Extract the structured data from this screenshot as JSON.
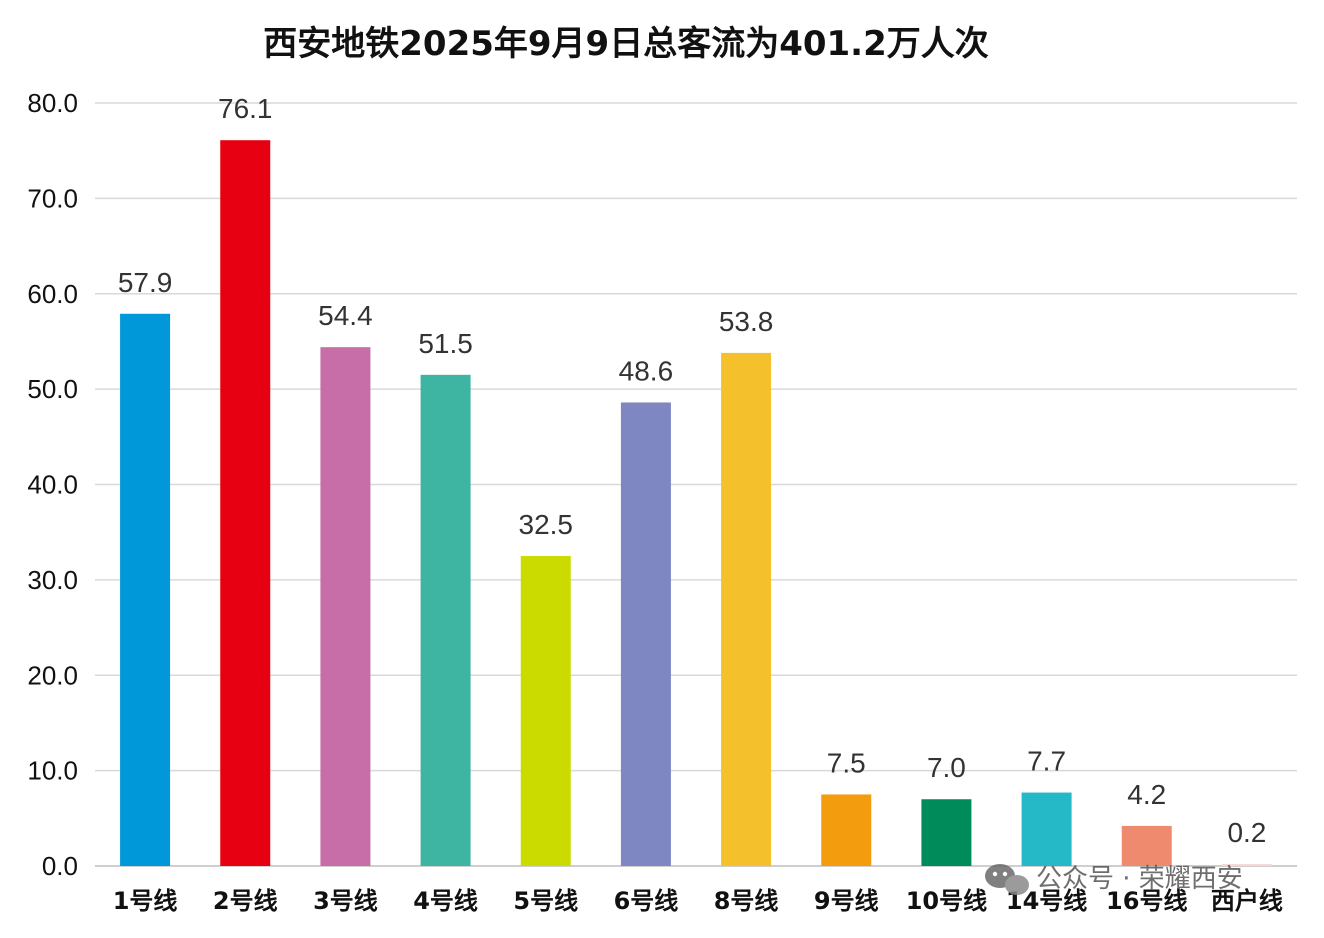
{
  "chart_data": {
    "type": "bar",
    "title": "西安地铁2025年9月9日总客流为401.2万人次",
    "xlabel": "",
    "ylabel": "",
    "ylim": [
      0,
      80
    ],
    "ytick_step": 10,
    "ytick_labels": [
      "0.0",
      "10.0",
      "20.0",
      "30.0",
      "40.0",
      "50.0",
      "60.0",
      "70.0",
      "80.0"
    ],
    "grid": true,
    "legend": "none",
    "categories": [
      "1号线",
      "2号线",
      "3号线",
      "4号线",
      "5号线",
      "6号线",
      "8号线",
      "9号线",
      "10号线",
      "14号线",
      "16号线",
      "西户线"
    ],
    "values": [
      57.9,
      76.1,
      54.4,
      51.5,
      32.5,
      48.6,
      53.8,
      7.5,
      7.0,
      7.7,
      4.2,
      0.2
    ],
    "value_labels": [
      "57.9",
      "76.1",
      "54.4",
      "51.5",
      "32.5",
      "48.6",
      "53.8",
      "7.5",
      "7.0",
      "7.7",
      "4.2",
      "0.2"
    ],
    "colors": [
      "#0098d8",
      "#e60012",
      "#c76ea9",
      "#3eb5a3",
      "#cbdb00",
      "#7e87c2",
      "#f4c02b",
      "#f39c0e",
      "#008c5a",
      "#25b9c8",
      "#f08a6e",
      "#f7d7d3"
    ]
  },
  "watermark": {
    "text": "公众号 · 荣耀西安",
    "icon": "wechat-icon"
  }
}
